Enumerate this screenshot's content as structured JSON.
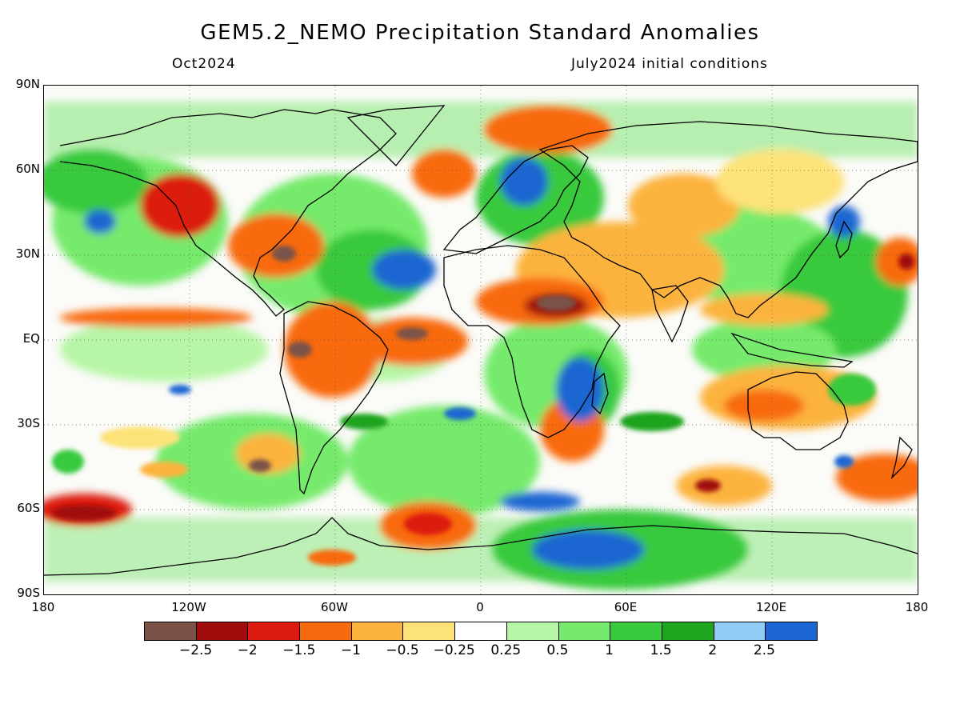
{
  "title": "GEM5.2_NEMO Precipitation Standard Anomalies",
  "subtitle_left": "Oct2024",
  "subtitle_right": "July2024 initial conditions",
  "map": {
    "projection": "equirectangular",
    "lat_range": [
      -90,
      90
    ],
    "lon_range": [
      -180,
      180
    ],
    "lat_labels": [
      "90N",
      "60N",
      "30N",
      "EQ",
      "30S",
      "60S",
      "90S"
    ],
    "lon_labels": [
      "180",
      "120W",
      "60W",
      "0",
      "60E",
      "120E",
      "180"
    ],
    "grid": "dotted"
  },
  "legend": {
    "colors": [
      "#7a5248",
      "#a00b0b",
      "#dc1a10",
      "#f86a10",
      "#fcb33e",
      "#fde278",
      "#ffffff",
      "#b7f6a6",
      "#76ea6c",
      "#38c93c",
      "#1ea41e",
      "#90cdf6",
      "#1b66d2"
    ],
    "labels": [
      "-2.5",
      "-2",
      "-1.5",
      "-1",
      "-0.5",
      "-0.25",
      "0.25",
      "0.5",
      "1",
      "1.5",
      "2",
      "2.5"
    ]
  }
}
